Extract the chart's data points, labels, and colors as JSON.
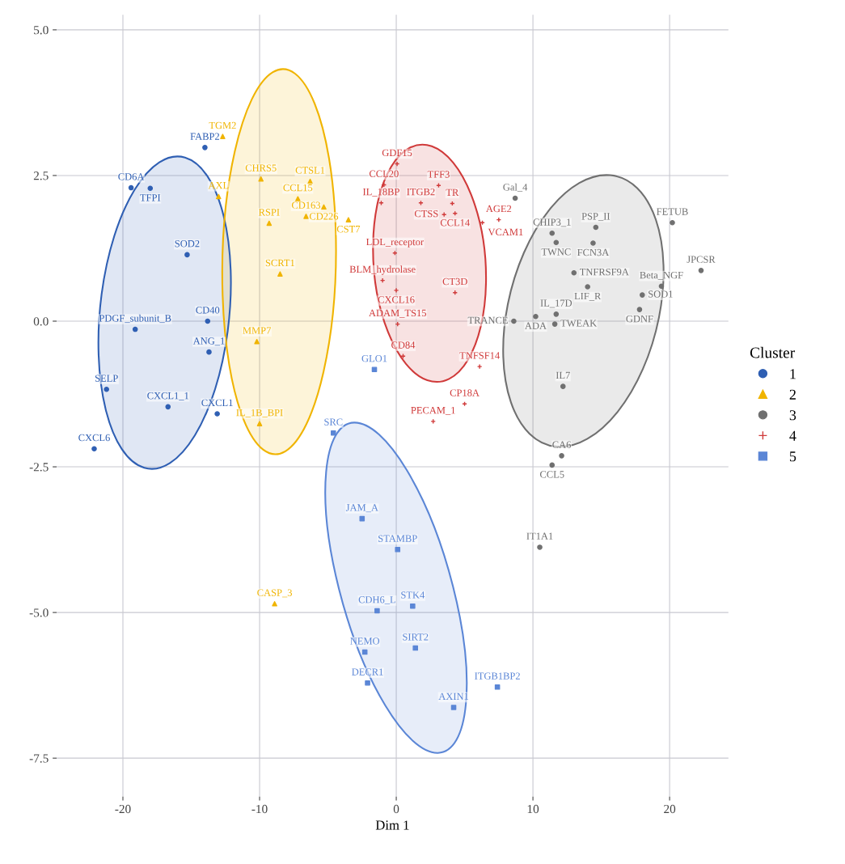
{
  "chart_data": {
    "type": "scatter",
    "xlabel": "Dim 1",
    "legend_title": "Cluster",
    "legend": "right",
    "grid": true,
    "xlim": [
      -24.85,
      24.3
    ],
    "ylim": [
      -8.16,
      5.26
    ],
    "xticks": [
      -20,
      -10,
      0,
      10,
      20
    ],
    "yticks": [
      {
        "value": 5,
        "label": "5.0"
      },
      {
        "value": 2.5,
        "label": "2.5"
      },
      {
        "value": 0,
        "label": "0.0"
      },
      {
        "value": -2.5,
        "label": "-2.5"
      },
      {
        "value": -5,
        "label": "-5.0"
      },
      {
        "value": -7.5,
        "label": "-7.5"
      }
    ],
    "series": [
      {
        "name": "1",
        "color": "#2f5fb3",
        "marker": "circle",
        "x": [
          -14.0,
          -19.4,
          -18.0,
          -15.3,
          -13.8,
          -19.1,
          -13.7,
          -21.2,
          -16.7,
          -13.1,
          -22.1
        ],
        "values": [
          2.98,
          2.29,
          2.28,
          1.14,
          0.0,
          -0.14,
          -0.53,
          -1.17,
          -1.47,
          -1.59,
          -2.19
        ]
      },
      {
        "name": "2",
        "color": "#f0b400",
        "marker": "triangle",
        "x": [
          -12.7,
          -6.3,
          -9.9,
          -13.0,
          -7.2,
          -5.3,
          -9.3,
          -6.6,
          -3.5,
          -8.5,
          -10.2,
          -10.0,
          -8.9
        ],
        "values": [
          3.17,
          2.4,
          2.44,
          2.14,
          2.1,
          1.96,
          1.68,
          1.8,
          1.74,
          0.81,
          -0.35,
          -1.76,
          -4.85
        ]
      },
      {
        "name": "3",
        "color": "#707070",
        "marker": "circle",
        "x": [
          8.7,
          11.4,
          11.7,
          14.6,
          14.4,
          20.2,
          22.3,
          19.4,
          14.0,
          13.0,
          11.7,
          18.0,
          17.8,
          10.2,
          8.6,
          11.6,
          12.2,
          12.1,
          11.4,
          10.5
        ],
        "values": [
          2.11,
          1.51,
          1.35,
          1.61,
          1.34,
          1.69,
          0.87,
          0.6,
          0.59,
          0.83,
          0.12,
          0.45,
          0.2,
          0.08,
          0.0,
          -0.05,
          -1.12,
          -2.31,
          -2.47,
          -3.88
        ]
      },
      {
        "name": "4",
        "color": "#d03a3a",
        "marker": "cross",
        "x": [
          0.06,
          -0.9,
          3.1,
          4.1,
          4.3,
          1.8,
          3.5,
          7.5,
          6.3,
          -0.1,
          0.0,
          4.3,
          0.1,
          -1.1,
          -1.0,
          0.5,
          6.1,
          5.0,
          2.7
        ],
        "values": [
          2.7,
          2.34,
          2.33,
          2.02,
          1.85,
          2.03,
          1.83,
          1.74,
          1.69,
          1.17,
          0.53,
          0.49,
          -0.05,
          2.03,
          0.7,
          -0.6,
          -0.78,
          -1.42,
          -1.72
        ]
      },
      {
        "name": "5",
        "color": "#5b86d6",
        "marker": "square",
        "x": [
          -1.6,
          -4.6,
          -2.5,
          0.1,
          1.2,
          -1.4,
          1.4,
          -2.3,
          -2.1,
          4.2,
          7.4
        ],
        "values": [
          -0.83,
          -1.92,
          -3.39,
          -3.92,
          -4.89,
          -4.97,
          -5.61,
          -5.68,
          -6.21,
          -6.63,
          -6.28
        ]
      }
    ],
    "annotations": [
      {
        "text": "FABP2",
        "x": -14.0,
        "y": 2.98
      },
      {
        "text": "CD6A",
        "x": -19.4,
        "y": 2.29
      },
      {
        "text": "TFPI",
        "x": -18.0,
        "y": 2.28
      },
      {
        "text": "SOD2",
        "x": -15.3,
        "y": 1.14
      },
      {
        "text": "CD40",
        "x": -13.8,
        "y": 0.0
      },
      {
        "text": "PDGF_subunit_B",
        "x": -19.1,
        "y": -0.14
      },
      {
        "text": "ANG_1",
        "x": -13.7,
        "y": -0.53
      },
      {
        "text": "SELP",
        "x": -21.2,
        "y": -1.17
      },
      {
        "text": "CXCL1_1",
        "x": -16.7,
        "y": -1.47
      },
      {
        "text": "CXCL1",
        "x": -13.1,
        "y": -1.59
      },
      {
        "text": "CXCL6",
        "x": -22.1,
        "y": -2.19
      },
      {
        "text": "TGM2",
        "x": -12.7,
        "y": 3.17
      },
      {
        "text": "CTSL1",
        "x": -6.3,
        "y": 2.4
      },
      {
        "text": "CHRS5",
        "x": -9.9,
        "y": 2.44
      },
      {
        "text": "AXL",
        "x": -13.0,
        "y": 2.14
      },
      {
        "text": "CCL15",
        "x": -7.2,
        "y": 2.1
      },
      {
        "text": "CD226",
        "x": -5.3,
        "y": 1.96
      },
      {
        "text": "RSPI",
        "x": -9.3,
        "y": 1.68
      },
      {
        "text": "CD163",
        "x": -6.6,
        "y": 1.8
      },
      {
        "text": "CST7",
        "x": -3.5,
        "y": 1.74
      },
      {
        "text": "SCRT1",
        "x": -8.5,
        "y": 0.81
      },
      {
        "text": "MMP7",
        "x": -10.2,
        "y": -0.35
      },
      {
        "text": "IL_1B_BPI",
        "x": -10.0,
        "y": -1.76
      },
      {
        "text": "CASP_3",
        "x": -8.9,
        "y": -4.85
      },
      {
        "text": "Gal_4",
        "x": 8.7,
        "y": 2.11
      },
      {
        "text": "CHIP3_1",
        "x": 11.4,
        "y": 1.51
      },
      {
        "text": "TWNC",
        "x": 11.7,
        "y": 1.35
      },
      {
        "text": "PSP_II",
        "x": 14.6,
        "y": 1.61
      },
      {
        "text": "FCN3A",
        "x": 14.4,
        "y": 1.34
      },
      {
        "text": "FETUB",
        "x": 20.2,
        "y": 1.69
      },
      {
        "text": "JPCSR",
        "x": 22.3,
        "y": 0.87
      },
      {
        "text": "Beta_NGF",
        "x": 19.4,
        "y": 0.6
      },
      {
        "text": "LIF_R",
        "x": 14.0,
        "y": 0.59
      },
      {
        "text": "TNFRSF9A",
        "x": 13.0,
        "y": 0.83
      },
      {
        "text": "IL_17D",
        "x": 11.7,
        "y": 0.12
      },
      {
        "text": "SOD1",
        "x": 18.0,
        "y": 0.45
      },
      {
        "text": "GDNF",
        "x": 17.8,
        "y": 0.2
      },
      {
        "text": "ADA",
        "x": 10.2,
        "y": 0.08
      },
      {
        "text": "TRANCE",
        "x": 8.6,
        "y": 0.0
      },
      {
        "text": "TWEAK",
        "x": 11.6,
        "y": -0.05
      },
      {
        "text": "IL7",
        "x": 12.2,
        "y": -1.12
      },
      {
        "text": "CA6",
        "x": 12.1,
        "y": -2.31
      },
      {
        "text": "CCL5",
        "x": 11.4,
        "y": -2.47
      },
      {
        "text": "IT1A1",
        "x": 10.5,
        "y": -3.88
      },
      {
        "text": "GDF15",
        "x": 0.06,
        "y": 2.7
      },
      {
        "text": "CCL20",
        "x": -0.9,
        "y": 2.34
      },
      {
        "text": "TFF3",
        "x": 3.1,
        "y": 2.33
      },
      {
        "text": "TR",
        "x": 4.1,
        "y": 2.02
      },
      {
        "text": "CCL14",
        "x": 4.3,
        "y": 1.85
      },
      {
        "text": "ITGB2",
        "x": 1.8,
        "y": 2.03
      },
      {
        "text": "CTSS",
        "x": 3.5,
        "y": 1.83
      },
      {
        "text": "AGE2",
        "x": 7.5,
        "y": 1.74
      },
      {
        "text": "VCAM1",
        "x": 6.3,
        "y": 1.69
      },
      {
        "text": "LDL_receptor",
        "x": -0.1,
        "y": 1.17
      },
      {
        "text": "CXCL16",
        "x": 0.0,
        "y": 0.53
      },
      {
        "text": "CT3D",
        "x": 4.3,
        "y": 0.49
      },
      {
        "text": "ADAM_TS15",
        "x": 0.1,
        "y": -0.05
      },
      {
        "text": "IL_18BP",
        "x": -1.1,
        "y": 2.03
      },
      {
        "text": "BLM_hydrolase",
        "x": -1.0,
        "y": 0.7
      },
      {
        "text": "CD84",
        "x": 0.5,
        "y": -0.6
      },
      {
        "text": "TNFSF14",
        "x": 6.1,
        "y": -0.78
      },
      {
        "text": "CP18A",
        "x": 5.0,
        "y": -1.42
      },
      {
        "text": "PECAM_1",
        "x": 2.7,
        "y": -1.72
      },
      {
        "text": "GLO1",
        "x": -1.6,
        "y": -0.83
      },
      {
        "text": "SRC",
        "x": -4.6,
        "y": -1.92
      },
      {
        "text": "JAM_A",
        "x": -2.5,
        "y": -3.39
      },
      {
        "text": "STAMBP",
        "x": 0.1,
        "y": -3.92
      },
      {
        "text": "STK4",
        "x": 1.2,
        "y": -4.89
      },
      {
        "text": "CDH6_L",
        "x": -1.4,
        "y": -4.97
      },
      {
        "text": "SIRT2",
        "x": 1.4,
        "y": -5.61
      },
      {
        "text": "NEMO",
        "x": -2.3,
        "y": -5.68
      },
      {
        "text": "DECR1",
        "x": -2.1,
        "y": -6.21
      },
      {
        "text": "AXIN1",
        "x": 4.2,
        "y": -6.63
      },
      {
        "text": "ITGB1BP2",
        "x": 7.4,
        "y": -6.28
      }
    ]
  }
}
